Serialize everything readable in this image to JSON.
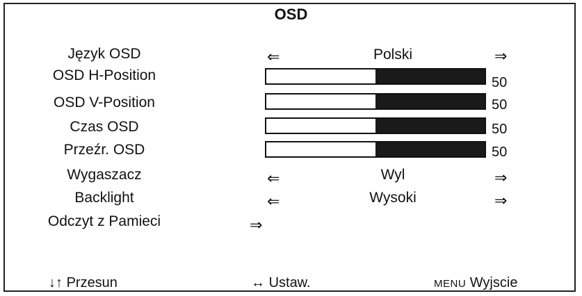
{
  "title": "OSD",
  "items": {
    "language": {
      "label": "Język OSD",
      "value": "Polski"
    },
    "h_position": {
      "label": "OSD H-Position",
      "value": "50",
      "level": 0.5
    },
    "v_position": {
      "label": "OSD V-Position",
      "value": "50",
      "level": 0.5
    },
    "osd_time": {
      "label": "Czas OSD",
      "value": "50",
      "level": 0.5
    },
    "transparency": {
      "label": "Przeźr. OSD",
      "value": "50",
      "level": 0.5
    },
    "screensaver": {
      "label": "Wygaszacz",
      "value": "Wyl"
    },
    "backlight": {
      "label": "Backlight",
      "value": "Wysoki"
    },
    "memory_recall": {
      "label": "Odczyt z Pamieci"
    }
  },
  "arrows": {
    "left": "⇐",
    "right": "⇒"
  },
  "footer": {
    "move_icon": "↓↑",
    "move_label": "Przesun",
    "adjust_icon": "↔",
    "adjust_label": "Ustaw.",
    "menu_key": "MENU",
    "exit_label": "Wyjscie"
  }
}
